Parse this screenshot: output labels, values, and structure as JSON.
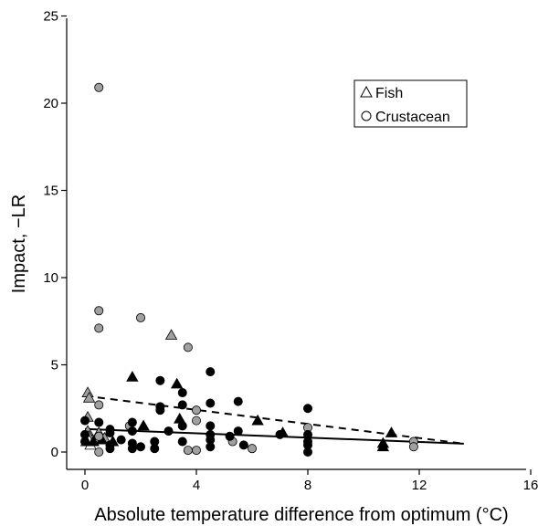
{
  "chart_data": {
    "type": "scatter",
    "title": "",
    "xlabel": "Absolute temperature difference from optimum (°C)",
    "ylabel": "Impact, −LR",
    "xlim": [
      -1,
      16
    ],
    "ylim": [
      -1,
      25
    ],
    "xticks": [
      0,
      4,
      8,
      12,
      16
    ],
    "yticks": [
      0,
      5,
      10,
      15,
      20,
      25
    ],
    "grid": false,
    "legend": {
      "placement": "top-right",
      "entries": [
        {
          "label": "Fish",
          "marker": "triangle"
        },
        {
          "label": "Crustacean",
          "marker": "circle"
        }
      ]
    },
    "colors": {
      "filled": "#000000",
      "gray": "#a0a0a0",
      "open": "#ffffff"
    },
    "series": [
      {
        "marker": "triangle",
        "fill": "gray",
        "points": [
          [
            0.1,
            3.4
          ],
          [
            0.15,
            3.1
          ],
          [
            0.1,
            2.0
          ],
          [
            0.1,
            1.2
          ],
          [
            0.15,
            0.9
          ],
          [
            3.1,
            6.7
          ],
          [
            0.5,
            1.1
          ],
          [
            0.7,
            0.8
          ]
        ]
      },
      {
        "marker": "triangle",
        "fill": "open",
        "points": [
          [
            0.05,
            0.6
          ],
          [
            0.2,
            0.4
          ],
          [
            0.1,
            0.8
          ]
        ]
      },
      {
        "marker": "triangle",
        "fill": "filled",
        "points": [
          [
            1.7,
            4.3
          ],
          [
            3.3,
            3.9
          ],
          [
            3.4,
            1.9
          ],
          [
            2.1,
            1.5
          ],
          [
            6.2,
            1.8
          ],
          [
            7.1,
            1.1
          ],
          [
            10.7,
            0.5
          ],
          [
            10.7,
            0.3
          ],
          [
            11.0,
            1.1
          ],
          [
            1.0,
            0.6
          ],
          [
            0.3,
            0.6
          ],
          [
            0.6,
            0.7
          ]
        ]
      },
      {
        "marker": "circle",
        "fill": "gray",
        "points": [
          [
            0.5,
            20.9
          ],
          [
            0.5,
            8.1
          ],
          [
            0.5,
            7.1
          ],
          [
            2.0,
            7.7
          ],
          [
            3.7,
            6.0
          ],
          [
            0.5,
            2.7
          ],
          [
            4.0,
            2.4
          ],
          [
            4.0,
            1.8
          ],
          [
            0.5,
            0.9
          ],
          [
            0.5,
            0.0
          ],
          [
            3.7,
            0.1
          ],
          [
            4.0,
            0.1
          ],
          [
            6.0,
            0.2
          ],
          [
            11.8,
            0.6
          ],
          [
            11.8,
            0.3
          ],
          [
            5.3,
            0.6
          ],
          [
            1.6,
            1.5
          ],
          [
            8.0,
            1.4
          ]
        ]
      },
      {
        "marker": "circle",
        "fill": "filled",
        "points": [
          [
            0.0,
            1.8
          ],
          [
            0.0,
            1.0
          ],
          [
            0.0,
            0.6
          ],
          [
            0.5,
            1.7
          ],
          [
            0.9,
            1.3
          ],
          [
            0.9,
            1.1
          ],
          [
            1.3,
            0.7
          ],
          [
            0.9,
            0.4
          ],
          [
            0.9,
            0.2
          ],
          [
            1.7,
            1.7
          ],
          [
            1.7,
            1.2
          ],
          [
            1.7,
            0.5
          ],
          [
            1.7,
            0.2
          ],
          [
            2.5,
            0.6
          ],
          [
            2.5,
            0.2
          ],
          [
            2.7,
            4.1
          ],
          [
            2.7,
            2.6
          ],
          [
            2.7,
            2.4
          ],
          [
            3.5,
            3.4
          ],
          [
            3.5,
            2.7
          ],
          [
            3.5,
            1.5
          ],
          [
            3.5,
            0.6
          ],
          [
            4.5,
            4.6
          ],
          [
            4.5,
            2.8
          ],
          [
            4.5,
            1.5
          ],
          [
            4.5,
            1.0
          ],
          [
            4.5,
            0.7
          ],
          [
            4.5,
            0.3
          ],
          [
            5.2,
            0.9
          ],
          [
            5.5,
            2.9
          ],
          [
            5.5,
            1.2
          ],
          [
            5.7,
            0.4
          ],
          [
            7.0,
            1.0
          ],
          [
            8.0,
            2.5
          ],
          [
            8.0,
            1.0
          ],
          [
            8.0,
            0.6
          ],
          [
            8.0,
            0.4
          ],
          [
            8.0,
            0.0
          ],
          [
            3.0,
            1.2
          ],
          [
            2.0,
            0.3
          ]
        ]
      }
    ],
    "fit_lines": [
      {
        "style": "solid",
        "x": [
          0,
          13.6
        ],
        "y": [
          1.32,
          0.48
        ]
      },
      {
        "style": "dashed",
        "x": [
          0,
          13.6
        ],
        "y": [
          3.22,
          0.48
        ]
      }
    ]
  }
}
